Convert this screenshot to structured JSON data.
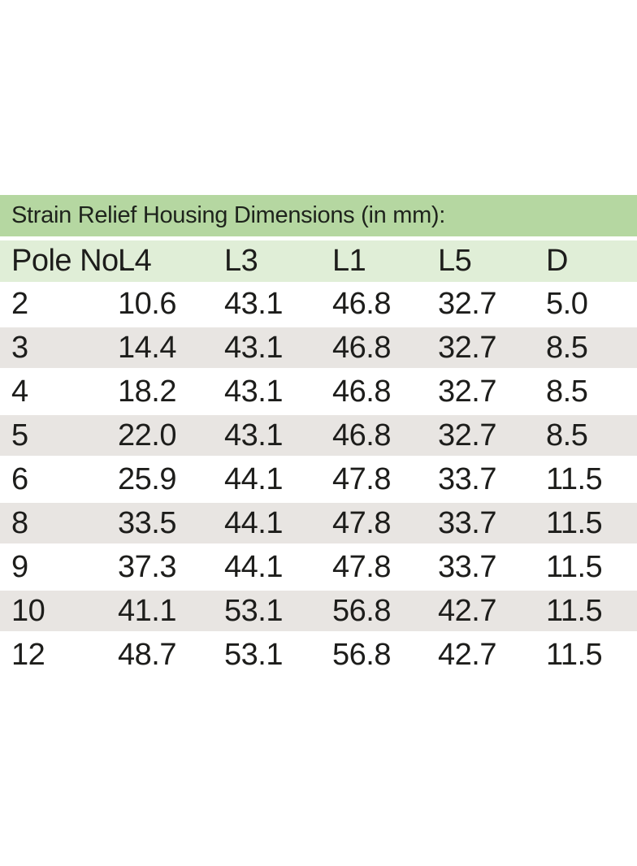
{
  "table": {
    "title": "Strain Relief Housing Dimensions (in mm):",
    "columns": [
      "Pole No.",
      "L4",
      "L3",
      "L1",
      "L5",
      "D"
    ],
    "rows": [
      [
        "2",
        "10.6",
        "43.1",
        "46.8",
        "32.7",
        "5.0"
      ],
      [
        "3",
        "14.4",
        "43.1",
        "46.8",
        "32.7",
        "8.5"
      ],
      [
        "4",
        "18.2",
        "43.1",
        "46.8",
        "32.7",
        "8.5"
      ],
      [
        "5",
        "22.0",
        "43.1",
        "46.8",
        "32.7",
        "8.5"
      ],
      [
        "6",
        "25.9",
        "44.1",
        "47.8",
        "33.7",
        "11.5"
      ],
      [
        "8",
        "33.5",
        "44.1",
        "47.8",
        "33.7",
        "11.5"
      ],
      [
        "9",
        "37.3",
        "44.1",
        "47.8",
        "33.7",
        "11.5"
      ],
      [
        "10",
        "41.1",
        "53.1",
        "56.8",
        "42.7",
        "11.5"
      ],
      [
        "12",
        "48.7",
        "53.1",
        "56.8",
        "42.7",
        "11.5"
      ]
    ],
    "colors": {
      "title_bar": "#b5d7a1",
      "header_row": "#e0eed7",
      "row_alt": "#e8e5e2",
      "row_default": "#ffffff",
      "text": "#1d1d1b"
    }
  }
}
